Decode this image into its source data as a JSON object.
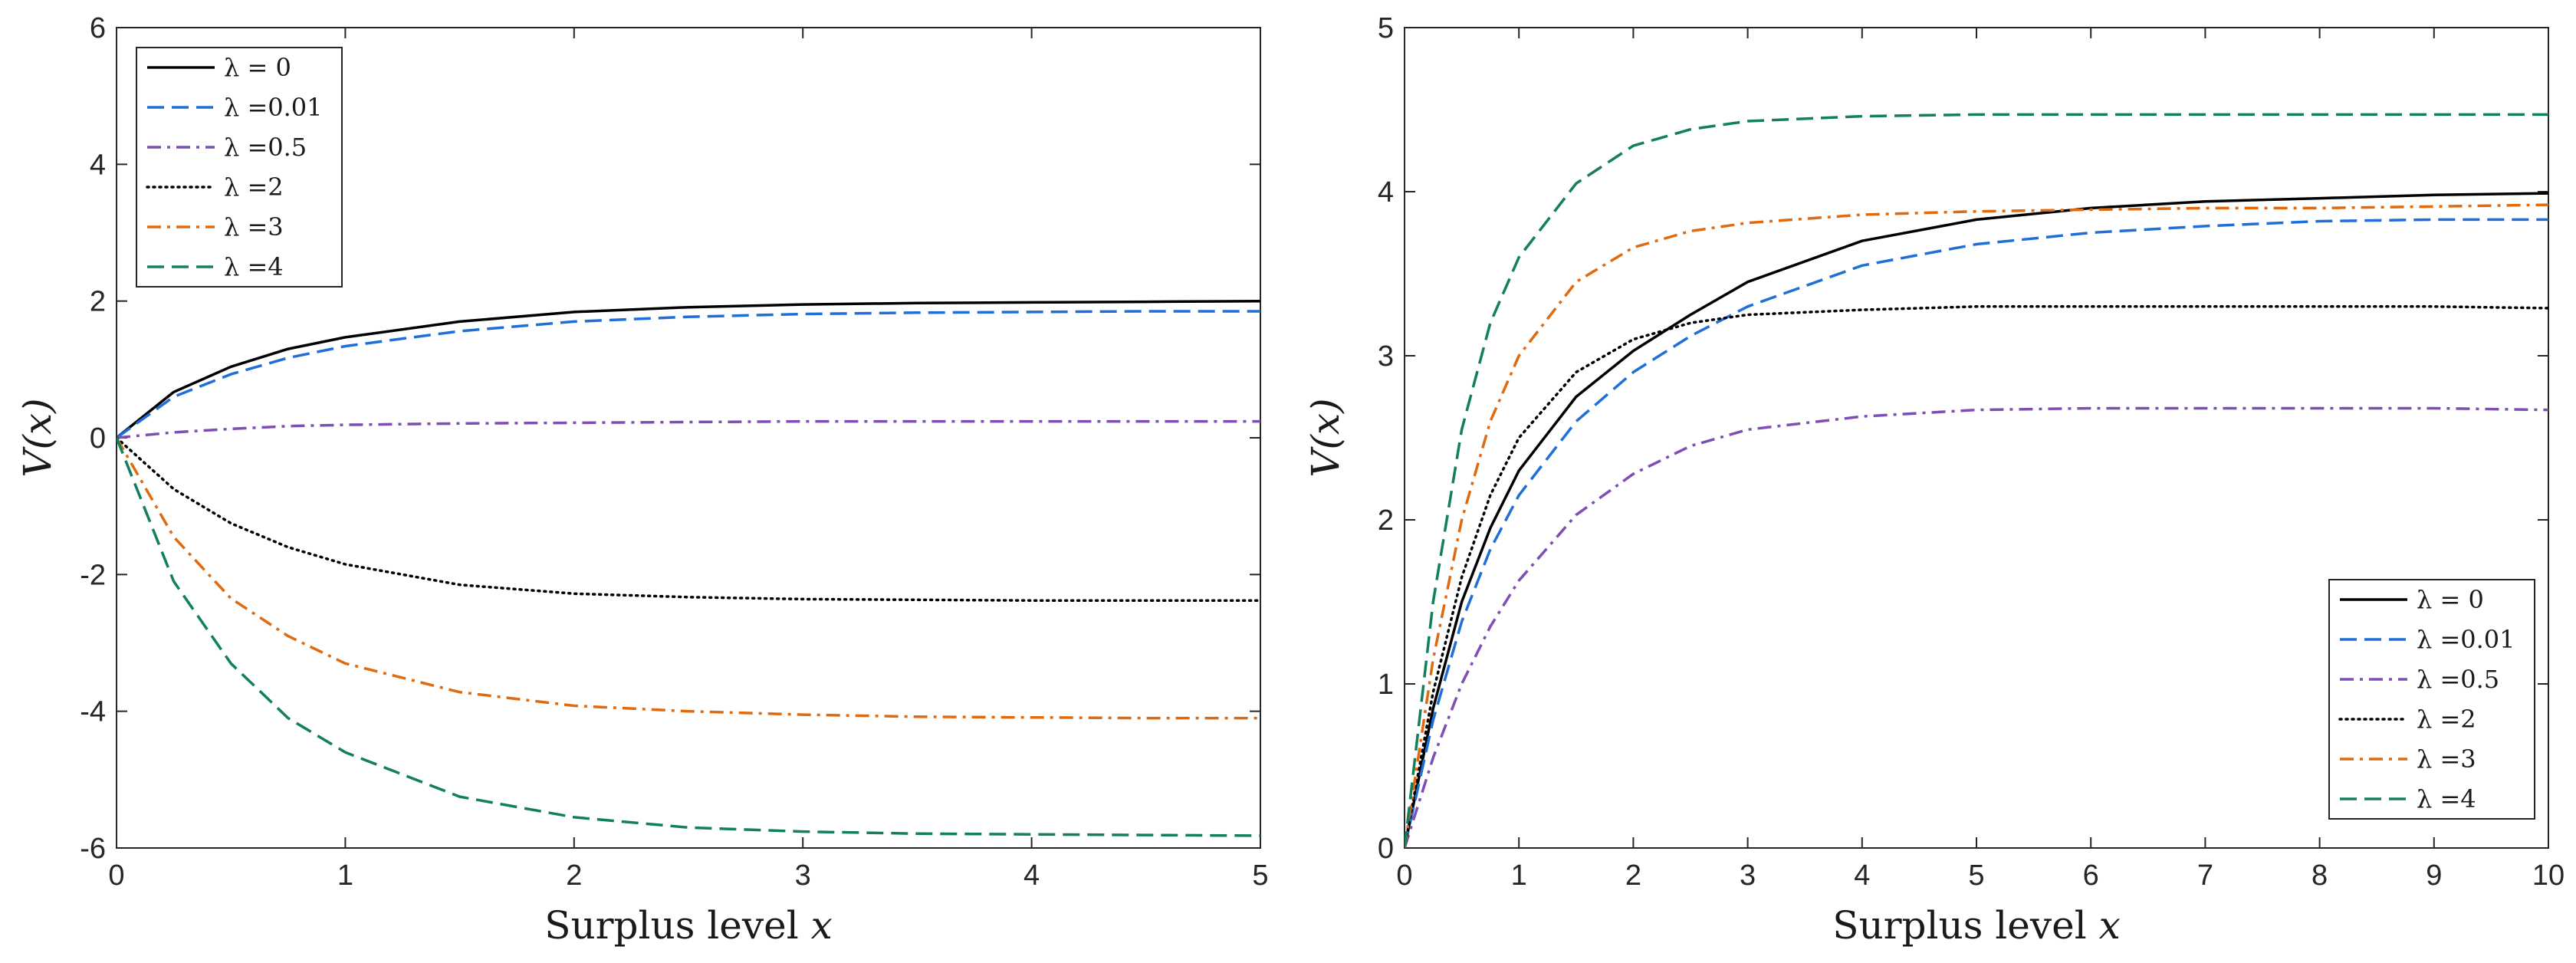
{
  "chart_data": [
    {
      "type": "line",
      "xlabel": "Surplus level x",
      "ylabel": "V(x)",
      "xlim": [
        0,
        5
      ],
      "ylim": [
        -6,
        6
      ],
      "xticks": [
        "0",
        "1",
        "2",
        "3",
        "4",
        "5"
      ],
      "yticks": [
        "-6",
        "-4",
        "-2",
        "0",
        "2",
        "4",
        "6"
      ],
      "grid": false,
      "legend_position": "top-left",
      "x": [
        0,
        0.25,
        0.5,
        0.75,
        1,
        1.5,
        2,
        2.5,
        3,
        3.5,
        4,
        4.5,
        5
      ],
      "series": [
        {
          "name": "λ = 0",
          "color": "#000000",
          "dash": "solid",
          "values": [
            0,
            0.67,
            1.04,
            1.3,
            1.47,
            1.7,
            1.84,
            1.91,
            1.95,
            1.97,
            1.98,
            1.99,
            2.0
          ]
        },
        {
          "name": "λ =0.01",
          "color": "#1f6fd6",
          "dash": "dashed",
          "values": [
            0,
            0.6,
            0.93,
            1.17,
            1.34,
            1.56,
            1.7,
            1.77,
            1.81,
            1.83,
            1.84,
            1.85,
            1.85
          ]
        },
        {
          "name": "λ =0.5",
          "color": "#7e4fb3",
          "dash": "dashdot",
          "values": [
            0,
            0.08,
            0.13,
            0.17,
            0.19,
            0.21,
            0.22,
            0.23,
            0.24,
            0.24,
            0.24,
            0.24,
            0.24
          ]
        },
        {
          "name": "λ =2",
          "color": "#000000",
          "dash": "dotted",
          "values": [
            0,
            -0.75,
            -1.25,
            -1.6,
            -1.85,
            -2.15,
            -2.28,
            -2.33,
            -2.36,
            -2.37,
            -2.38,
            -2.38,
            -2.38
          ]
        },
        {
          "name": "λ =3",
          "color": "#e06a10",
          "dash": "dashdot",
          "values": [
            0,
            -1.45,
            -2.35,
            -2.9,
            -3.3,
            -3.72,
            -3.92,
            -4.0,
            -4.05,
            -4.08,
            -4.09,
            -4.1,
            -4.1
          ]
        },
        {
          "name": "λ =4",
          "color": "#12805a",
          "dash": "dashed",
          "values": [
            0,
            -2.1,
            -3.3,
            -4.1,
            -4.6,
            -5.25,
            -5.55,
            -5.7,
            -5.76,
            -5.79,
            -5.8,
            -5.81,
            -5.82
          ]
        }
      ]
    },
    {
      "type": "line",
      "xlabel": "Surplus level x",
      "ylabel": "V(x)",
      "xlim": [
        0,
        10
      ],
      "ylim": [
        0,
        5
      ],
      "xticks": [
        "0",
        "1",
        "2",
        "3",
        "4",
        "5",
        "6",
        "7",
        "8",
        "9",
        "10"
      ],
      "yticks": [
        "0",
        "1",
        "2",
        "3",
        "4",
        "5"
      ],
      "grid": false,
      "legend_position": "bottom-right",
      "x": [
        0,
        0.25,
        0.5,
        0.75,
        1,
        1.5,
        2,
        2.5,
        3,
        4,
        5,
        6,
        7,
        8,
        9,
        10
      ],
      "series": [
        {
          "name": "λ = 0",
          "color": "#000000",
          "dash": "solid",
          "values": [
            0,
            0.85,
            1.5,
            1.95,
            2.3,
            2.75,
            3.03,
            3.25,
            3.45,
            3.7,
            3.83,
            3.9,
            3.94,
            3.96,
            3.98,
            3.99
          ]
        },
        {
          "name": "λ =0.01",
          "color": "#1f6fd6",
          "dash": "dashed",
          "values": [
            0,
            0.78,
            1.38,
            1.82,
            2.15,
            2.6,
            2.9,
            3.12,
            3.3,
            3.55,
            3.68,
            3.75,
            3.79,
            3.82,
            3.83,
            3.83
          ]
        },
        {
          "name": "λ =0.5",
          "color": "#7e4fb3",
          "dash": "dashdot",
          "values": [
            0,
            0.55,
            1.0,
            1.35,
            1.63,
            2.03,
            2.28,
            2.45,
            2.55,
            2.63,
            2.67,
            2.68,
            2.68,
            2.68,
            2.68,
            2.67
          ]
        },
        {
          "name": "λ =2",
          "color": "#000000",
          "dash": "dotted",
          "values": [
            0,
            0.95,
            1.65,
            2.15,
            2.5,
            2.9,
            3.1,
            3.2,
            3.25,
            3.28,
            3.3,
            3.3,
            3.3,
            3.3,
            3.3,
            3.29
          ]
        },
        {
          "name": "λ =3",
          "color": "#e06a10",
          "dash": "dashdot",
          "values": [
            0,
            1.15,
            2.0,
            2.6,
            3.0,
            3.45,
            3.66,
            3.76,
            3.81,
            3.86,
            3.88,
            3.89,
            3.9,
            3.9,
            3.91,
            3.92
          ]
        },
        {
          "name": "λ =4",
          "color": "#12805a",
          "dash": "dashed",
          "values": [
            0,
            1.5,
            2.55,
            3.2,
            3.6,
            4.05,
            4.28,
            4.38,
            4.43,
            4.46,
            4.47,
            4.47,
            4.47,
            4.47,
            4.47,
            4.47
          ]
        }
      ]
    }
  ]
}
